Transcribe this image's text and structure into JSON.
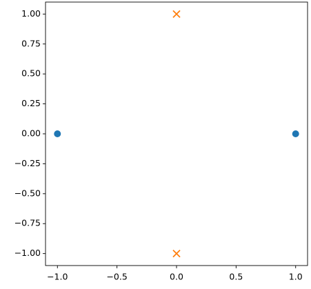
{
  "chart_data": {
    "type": "scatter",
    "series": [
      {
        "color": "#1f77b4",
        "marker": "o",
        "x": [
          -1,
          1
        ],
        "values": [
          0,
          0
        ]
      },
      {
        "color": "#ff7f0e",
        "marker": "x",
        "x": [
          0,
          0
        ],
        "values": [
          1,
          -1
        ]
      }
    ],
    "xlim": [
      -1.1,
      1.1
    ],
    "ylim": [
      -1.1,
      1.1
    ],
    "xticks": [
      {
        "value": -1,
        "label": "−1.0"
      },
      {
        "value": -0.5,
        "label": "−0.5"
      },
      {
        "value": 0,
        "label": "0.0"
      },
      {
        "value": 0.5,
        "label": "0.5"
      },
      {
        "value": 1,
        "label": "1.0"
      }
    ],
    "yticks": [
      {
        "value": -1,
        "label": "−1.00"
      },
      {
        "value": -0.75,
        "label": "−0.75"
      },
      {
        "value": -0.5,
        "label": "−0.50"
      },
      {
        "value": -0.25,
        "label": "−0.25"
      },
      {
        "value": 0,
        "label": "0.00"
      },
      {
        "value": 0.25,
        "label": "0.25"
      },
      {
        "value": 0.5,
        "label": "0.50"
      },
      {
        "value": 0.75,
        "label": "0.75"
      },
      {
        "value": 1,
        "label": "1.00"
      }
    ],
    "grid": false
  }
}
